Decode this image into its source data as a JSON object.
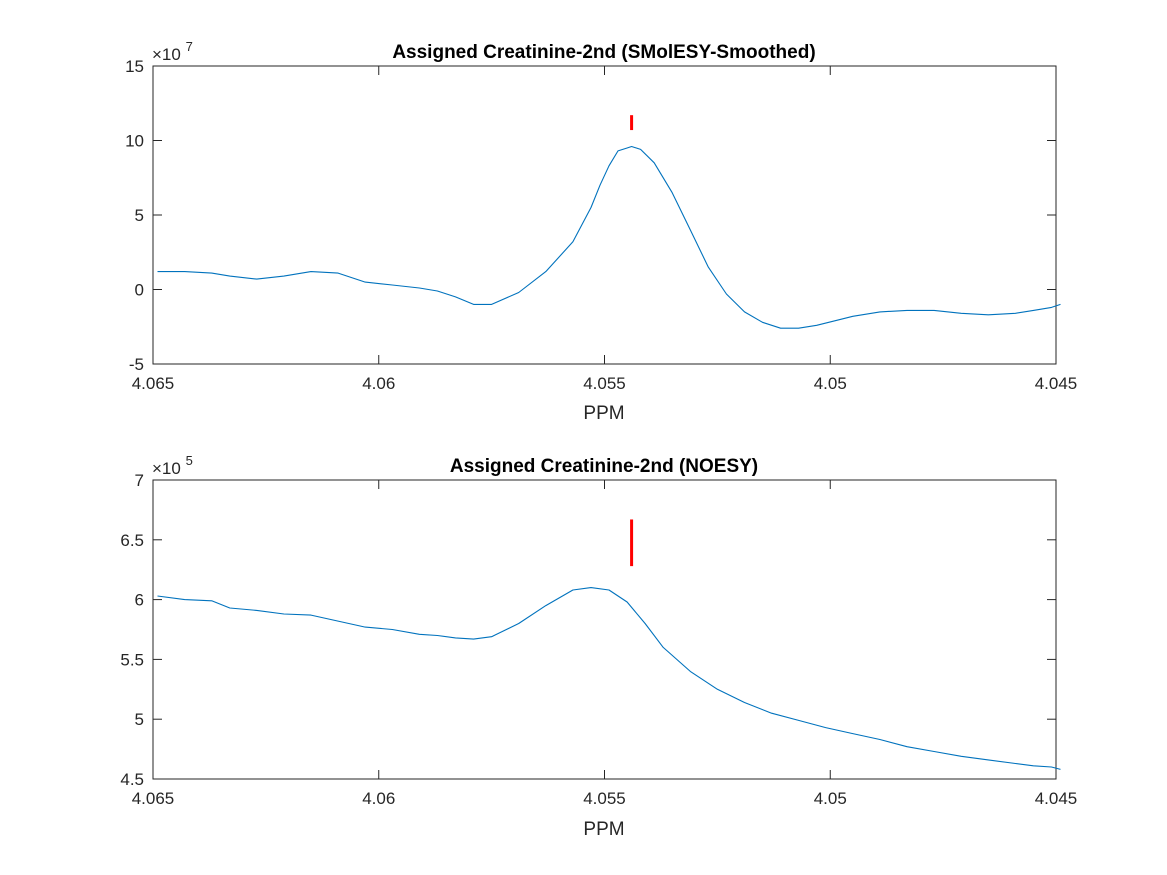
{
  "chart_data": [
    {
      "type": "line",
      "title": "Assigned Creatinine-2nd (SMolESY-Smoothed)",
      "xlabel": "PPM",
      "ylabel": "",
      "x_reversed": true,
      "xlim": [
        4.045,
        4.065
      ],
      "ylim": [
        -5,
        15
      ],
      "y_multiplier_label": "×10",
      "y_multiplier_exp": "7",
      "xticks": [
        "4.065",
        "4.06",
        "4.055",
        "4.05",
        "4.045"
      ],
      "xtick_values": [
        4.065,
        4.06,
        4.055,
        4.05,
        4.045
      ],
      "yticks": [
        "-5",
        "0",
        "5",
        "10",
        "15"
      ],
      "ytick_values": [
        -5,
        0,
        5,
        10,
        15
      ],
      "grid": false,
      "series_color": "#0072BD",
      "marker_color": "#FF0000",
      "marker": {
        "x": 4.0544,
        "y0": 10.7,
        "y1": 11.7
      },
      "series": [
        {
          "x": [
            4.0649,
            4.0643,
            4.0637,
            4.0633,
            4.0627,
            4.0621,
            4.0615,
            4.0609,
            4.0603,
            4.0597,
            4.0591,
            4.0587,
            4.0583,
            4.0579,
            4.0575,
            4.0569,
            4.0563,
            4.0557,
            4.0553,
            4.0551,
            4.0549,
            4.0547,
            4.0545,
            4.0544,
            4.0542,
            4.0539,
            4.0535,
            4.0531,
            4.0527,
            4.0523,
            4.0519,
            4.0515,
            4.0511,
            4.0507,
            4.0503,
            4.0499,
            4.0495,
            4.0489,
            4.0483,
            4.0477,
            4.0471,
            4.0465,
            4.0459,
            4.0455,
            4.0451,
            4.0449
          ],
          "y": [
            1.2,
            1.2,
            1.1,
            0.9,
            0.7,
            0.9,
            1.2,
            1.1,
            0.5,
            0.3,
            0.1,
            -0.1,
            -0.5,
            -1.0,
            -1.0,
            -0.2,
            1.2,
            3.2,
            5.5,
            7.0,
            8.3,
            9.3,
            9.5,
            9.6,
            9.4,
            8.5,
            6.5,
            4.0,
            1.5,
            -0.3,
            -1.5,
            -2.2,
            -2.6,
            -2.6,
            -2.4,
            -2.1,
            -1.8,
            -1.5,
            -1.4,
            -1.4,
            -1.6,
            -1.7,
            -1.6,
            -1.4,
            -1.2,
            -1.0
          ]
        }
      ]
    },
    {
      "type": "line",
      "title": "Assigned Creatinine-2nd (NOESY)",
      "xlabel": "PPM",
      "ylabel": "",
      "x_reversed": true,
      "xlim": [
        4.045,
        4.065
      ],
      "ylim": [
        4.5,
        7
      ],
      "y_multiplier_label": "×10",
      "y_multiplier_exp": "5",
      "xticks": [
        "4.065",
        "4.06",
        "4.055",
        "4.05",
        "4.045"
      ],
      "xtick_values": [
        4.065,
        4.06,
        4.055,
        4.05,
        4.045
      ],
      "yticks": [
        "4.5",
        "5",
        "5.5",
        "6",
        "6.5",
        "7"
      ],
      "ytick_values": [
        4.5,
        5,
        5.5,
        6,
        6.5,
        7
      ],
      "grid": false,
      "series_color": "#0072BD",
      "marker_color": "#FF0000",
      "marker": {
        "x": 4.0544,
        "y0": 6.28,
        "y1": 6.67
      },
      "series": [
        {
          "x": [
            4.0649,
            4.0643,
            4.0637,
            4.0633,
            4.0627,
            4.0621,
            4.0615,
            4.0609,
            4.0603,
            4.0597,
            4.0591,
            4.0587,
            4.0583,
            4.0579,
            4.0575,
            4.0569,
            4.0563,
            4.0557,
            4.0553,
            4.0549,
            4.0545,
            4.0541,
            4.0537,
            4.0531,
            4.0525,
            4.0519,
            4.0513,
            4.0507,
            4.0501,
            4.0495,
            4.0489,
            4.0483,
            4.0477,
            4.0471,
            4.0465,
            4.0459,
            4.0455,
            4.0451,
            4.0449
          ],
          "y": [
            6.03,
            6.0,
            5.99,
            5.93,
            5.91,
            5.88,
            5.87,
            5.82,
            5.77,
            5.75,
            5.71,
            5.7,
            5.68,
            5.67,
            5.69,
            5.8,
            5.95,
            6.08,
            6.1,
            6.08,
            5.98,
            5.8,
            5.6,
            5.4,
            5.25,
            5.14,
            5.05,
            4.99,
            4.93,
            4.88,
            4.83,
            4.77,
            4.73,
            4.69,
            4.66,
            4.63,
            4.61,
            4.6,
            4.58
          ]
        }
      ]
    }
  ]
}
